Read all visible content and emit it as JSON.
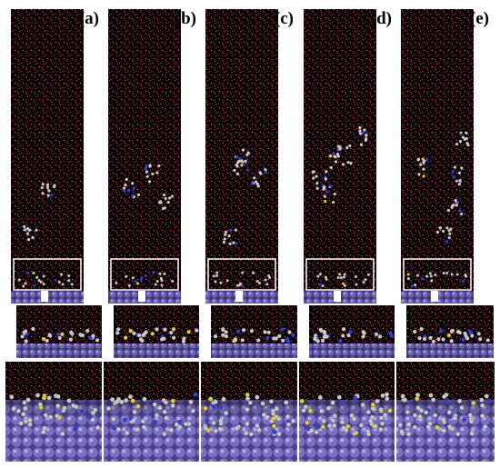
{
  "figure": {
    "panels": [
      {
        "label": "(a)",
        "molecules": 2
      },
      {
        "label": "(b)",
        "molecules": 3
      },
      {
        "label": "(c)",
        "molecules": 4
      },
      {
        "label": "(d)",
        "molecules": 5
      },
      {
        "label": "(e)",
        "molecules": 5
      }
    ],
    "colors": {
      "background": "#ffffff",
      "water_box": "#0d0204",
      "water_oxygen": "#c0283a",
      "water_hydrogen": "#e8dada",
      "surface_atom": "#6f62b5",
      "surface_atom_light": "#a79ee0",
      "carbon": "#c9c9c9",
      "nitrogen": "#2f3fd9",
      "sulfur": "#e5cf20",
      "zoom_box": "#ffffff"
    }
  }
}
